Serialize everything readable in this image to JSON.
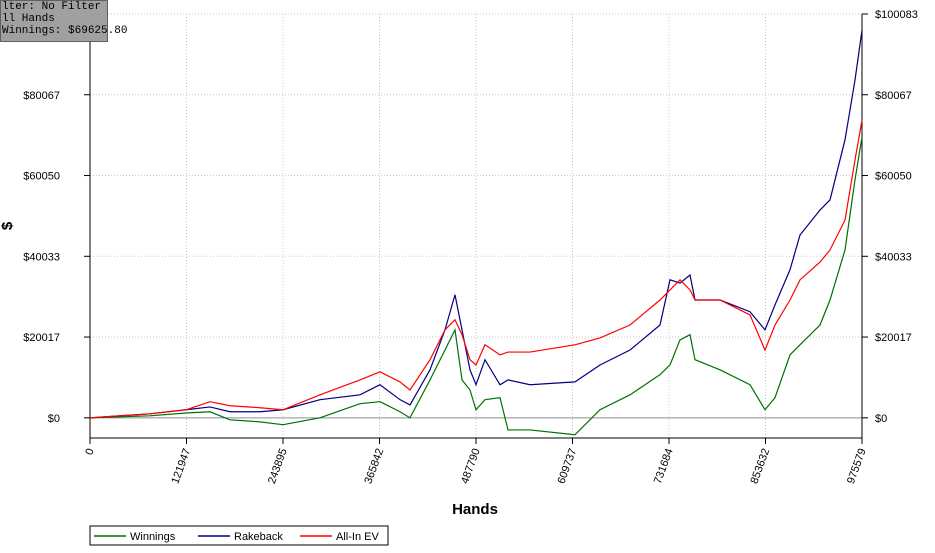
{
  "chart_data": {
    "type": "line",
    "info": [
      "lter: No Filter",
      "ll Hands",
      "Winnings: $69625.80"
    ],
    "xlabel": "Hands",
    "ylabel": "$",
    "xlim": [
      0,
      975579
    ],
    "ylim": [
      -5000,
      100083
    ],
    "xticks": [
      0,
      121947,
      243895,
      365842,
      487790,
      609737,
      731684,
      853632,
      975579
    ],
    "yticks": [
      {
        "value": 0,
        "label": "$0"
      },
      {
        "value": 20017,
        "label": "$20017"
      },
      {
        "value": 40033,
        "label": "$40033"
      },
      {
        "value": 60050,
        "label": "$60050"
      },
      {
        "value": 80067,
        "label": "$80067"
      },
      {
        "value": 100083,
        "label": "$100083"
      }
    ],
    "grid": true,
    "x": [
      0,
      75822,
      121315,
      151644,
      176918,
      214829,
      243894,
      290651,
      341199,
      366473,
      391747,
      404384,
      429658,
      448614,
      461251,
      470096,
      480206,
      487788,
      499162,
      518117,
      528227,
      556028,
      612895,
      644487,
      682398,
      720309,
      732946,
      745583,
      758220,
      764539,
      796131,
      834042,
      852998,
      865635,
      884590,
      897227,
      922501,
      935138,
      954093,
      966730,
      975579
    ],
    "series": [
      {
        "name": "Winnings",
        "color": "#007000",
        "values": [
          0,
          500,
          1200,
          1500,
          -500,
          -1000,
          -1700,
          0,
          3500,
          4000,
          1500,
          0,
          9400,
          16800,
          21800,
          9400,
          6900,
          2000,
          4500,
          5000,
          -3000,
          -3000,
          -4200,
          2000,
          5700,
          10700,
          13100,
          19300,
          20600,
          14400,
          11900,
          8200,
          2000,
          5000,
          15600,
          18100,
          23000,
          29200,
          41600,
          59000,
          69600
        ]
      },
      {
        "name": "Rakeback",
        "color": "#000080",
        "values": [
          0,
          1000,
          2000,
          2700,
          1500,
          1500,
          2000,
          4500,
          5700,
          8200,
          4500,
          3200,
          11900,
          21800,
          30500,
          21800,
          11900,
          8200,
          14400,
          8200,
          9400,
          8200,
          8900,
          13100,
          16800,
          23000,
          34200,
          33400,
          35400,
          29200,
          29200,
          26300,
          21800,
          28000,
          36700,
          45300,
          51500,
          54000,
          68900,
          83700,
          96100
        ]
      },
      {
        "name": "All-In EV",
        "color": "#ff0000",
        "values": [
          0,
          1000,
          2000,
          4000,
          3000,
          2500,
          2000,
          5700,
          9400,
          11400,
          8900,
          6900,
          14400,
          21800,
          24300,
          20600,
          14400,
          13100,
          18100,
          15600,
          16300,
          16300,
          18100,
          19800,
          23000,
          29200,
          31700,
          34200,
          31700,
          29200,
          29200,
          25500,
          16800,
          23000,
          29200,
          34200,
          38600,
          41600,
          49000,
          63900,
          73800
        ]
      }
    ]
  }
}
